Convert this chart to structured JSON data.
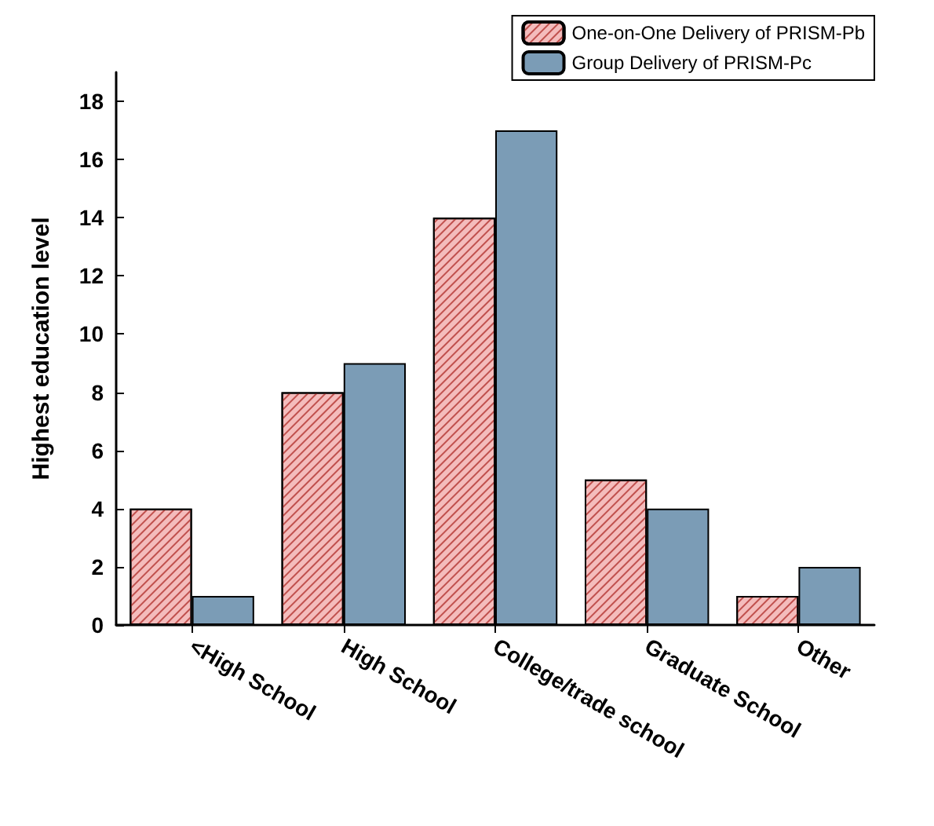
{
  "chart_data": {
    "type": "bar",
    "ylabel": "Highest education level",
    "categories": [
      "<High School",
      "High School",
      "College/trade school",
      "Graduate School",
      "Other"
    ],
    "series": [
      {
        "name": "One-on-One Delivery of PRISM-Pb",
        "color": "#f4bcbc",
        "values": [
          4,
          8,
          14,
          5,
          1
        ]
      },
      {
        "name": "Group Delivery of PRISM-Pc",
        "color": "#7b9cb6",
        "values": [
          1,
          9,
          17,
          4,
          2
        ]
      }
    ],
    "ylim": [
      0,
      19
    ],
    "yticks": [
      0,
      2,
      4,
      6,
      8,
      10,
      12,
      14,
      16,
      18
    ],
    "legend": "top right",
    "grid": false
  }
}
